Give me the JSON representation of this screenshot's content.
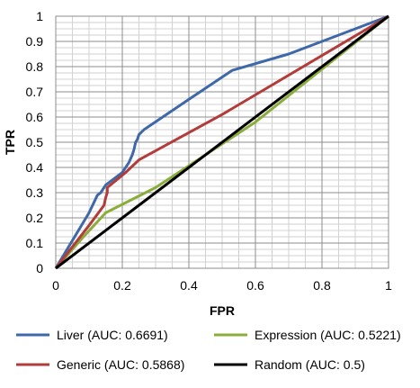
{
  "chart_data": {
    "type": "line",
    "title": "",
    "xlabel": "FPR",
    "ylabel": "TPR",
    "xlim": [
      0,
      1
    ],
    "ylim": [
      0,
      1
    ],
    "xticks": [
      "0",
      "0.2",
      "0.4",
      "0.6",
      "0.8",
      "1"
    ],
    "yticks": [
      "0",
      "0.1",
      "0.2",
      "0.3",
      "0.4",
      "0.5",
      "0.6",
      "0.7",
      "0.8",
      "0.9",
      "1"
    ],
    "grid": true,
    "legend_position": "bottom",
    "series": [
      {
        "name": "Liver (AUC: 0.6691)",
        "color": "#3f68a8",
        "points": [
          [
            0,
            0
          ],
          [
            0.05,
            0.11
          ],
          [
            0.1,
            0.22
          ],
          [
            0.125,
            0.29
          ],
          [
            0.135,
            0.3
          ],
          [
            0.15,
            0.33
          ],
          [
            0.2,
            0.38
          ],
          [
            0.22,
            0.42
          ],
          [
            0.23,
            0.45
          ],
          [
            0.235,
            0.47
          ],
          [
            0.24,
            0.5
          ],
          [
            0.245,
            0.51
          ],
          [
            0.25,
            0.53
          ],
          [
            0.265,
            0.55
          ],
          [
            0.4,
            0.67
          ],
          [
            0.53,
            0.785
          ],
          [
            0.7,
            0.85
          ],
          [
            1,
            1
          ]
        ]
      },
      {
        "name": "Expression (AUC: 0.5221)",
        "color": "#8aad3c",
        "points": [
          [
            0,
            0
          ],
          [
            0.08,
            0.12
          ],
          [
            0.15,
            0.22
          ],
          [
            0.3,
            0.32
          ],
          [
            0.6,
            0.58
          ],
          [
            1,
            1
          ]
        ]
      },
      {
        "name": "Generic (AUC: 0.5868)",
        "color": "#b23c3a",
        "points": [
          [
            0,
            0
          ],
          [
            0.1,
            0.17
          ],
          [
            0.145,
            0.25
          ],
          [
            0.15,
            0.28
          ],
          [
            0.155,
            0.3
          ],
          [
            0.155,
            0.32
          ],
          [
            0.21,
            0.38
          ],
          [
            0.25,
            0.43
          ],
          [
            0.5,
            0.61
          ],
          [
            1,
            1
          ]
        ]
      },
      {
        "name": "Random (AUC: 0.5)",
        "color": "#000000",
        "points": [
          [
            0,
            0
          ],
          [
            1,
            1
          ]
        ]
      }
    ]
  }
}
